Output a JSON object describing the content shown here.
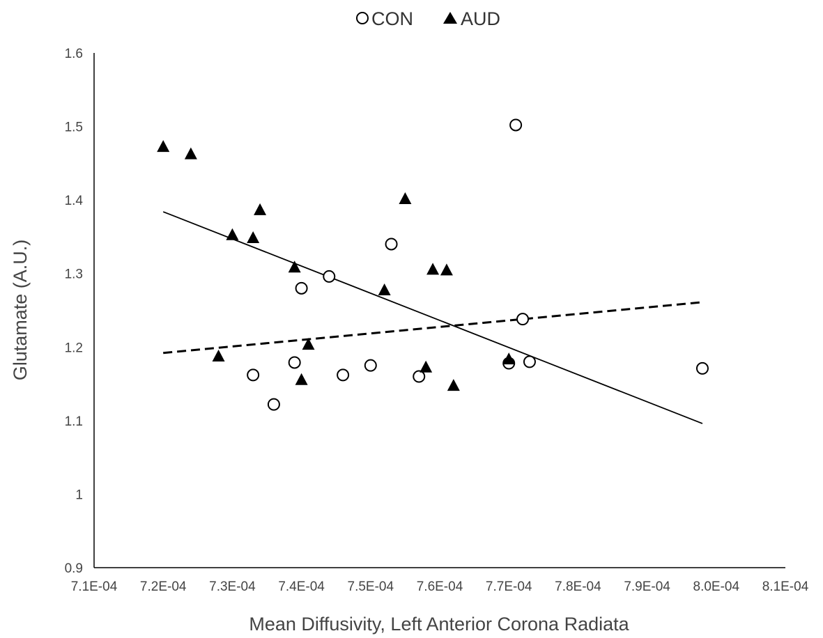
{
  "chart_data": {
    "type": "scatter",
    "xlabel": "Mean Diffusivity, Left Anterior Corona Radiata",
    "ylabel": "Glutamate (A.U.)",
    "xlim": [
      0.00071,
      0.00081
    ],
    "ylim": [
      0.9,
      1.6
    ],
    "x_ticks": [
      0.00071,
      0.00072,
      0.00073,
      0.00074,
      0.00075,
      0.00076,
      0.00077,
      0.00078,
      0.00079,
      0.0008,
      0.00081
    ],
    "x_tick_labels": [
      "7.1E-04",
      "7.2E-04",
      "7.3E-04",
      "7.4E-04",
      "7.5E-04",
      "7.6E-04",
      "7.7E-04",
      "7.8E-04",
      "7.9E-04",
      "8.0E-04",
      "8.1E-04"
    ],
    "y_ticks": [
      0.9,
      1.0,
      1.1,
      1.2,
      1.3,
      1.4,
      1.5,
      1.6
    ],
    "y_tick_labels": [
      "0.9",
      "1",
      "1.1",
      "1.2",
      "1.3",
      "1.4",
      "1.5",
      "1.6"
    ],
    "grid": false,
    "legend_position": "top-center",
    "series": [
      {
        "name": "CON",
        "marker": "circle-open",
        "color": "#000000",
        "points": [
          [
            0.000733,
            1.162
          ],
          [
            0.000736,
            1.122
          ],
          [
            0.000739,
            1.179
          ],
          [
            0.00074,
            1.28
          ],
          [
            0.000744,
            1.296
          ],
          [
            0.000746,
            1.162
          ],
          [
            0.00075,
            1.175
          ],
          [
            0.000753,
            1.34
          ],
          [
            0.000757,
            1.16
          ],
          [
            0.00077,
            1.178
          ],
          [
            0.000771,
            1.502
          ],
          [
            0.000772,
            1.238
          ],
          [
            0.000773,
            1.18
          ],
          [
            0.000798,
            1.171
          ]
        ],
        "trendline": {
          "style": "dashed",
          "x": [
            0.00072,
            0.000798
          ],
          "y": [
            1.192,
            1.261
          ]
        }
      },
      {
        "name": "AUD",
        "marker": "triangle-filled",
        "color": "#000000",
        "points": [
          [
            0.00072,
            1.473
          ],
          [
            0.000724,
            1.463
          ],
          [
            0.000728,
            1.188
          ],
          [
            0.00073,
            1.353
          ],
          [
            0.000733,
            1.349
          ],
          [
            0.000734,
            1.387
          ],
          [
            0.000739,
            1.309
          ],
          [
            0.00074,
            1.156
          ],
          [
            0.000741,
            1.204
          ],
          [
            0.000752,
            1.278
          ],
          [
            0.000755,
            1.402
          ],
          [
            0.000758,
            1.173
          ],
          [
            0.000759,
            1.306
          ],
          [
            0.000761,
            1.305
          ],
          [
            0.000762,
            1.148
          ],
          [
            0.00077,
            1.184
          ]
        ],
        "trendline": {
          "style": "solid",
          "x": [
            0.00072,
            0.000798
          ],
          "y": [
            1.384,
            1.096
          ]
        }
      }
    ]
  }
}
